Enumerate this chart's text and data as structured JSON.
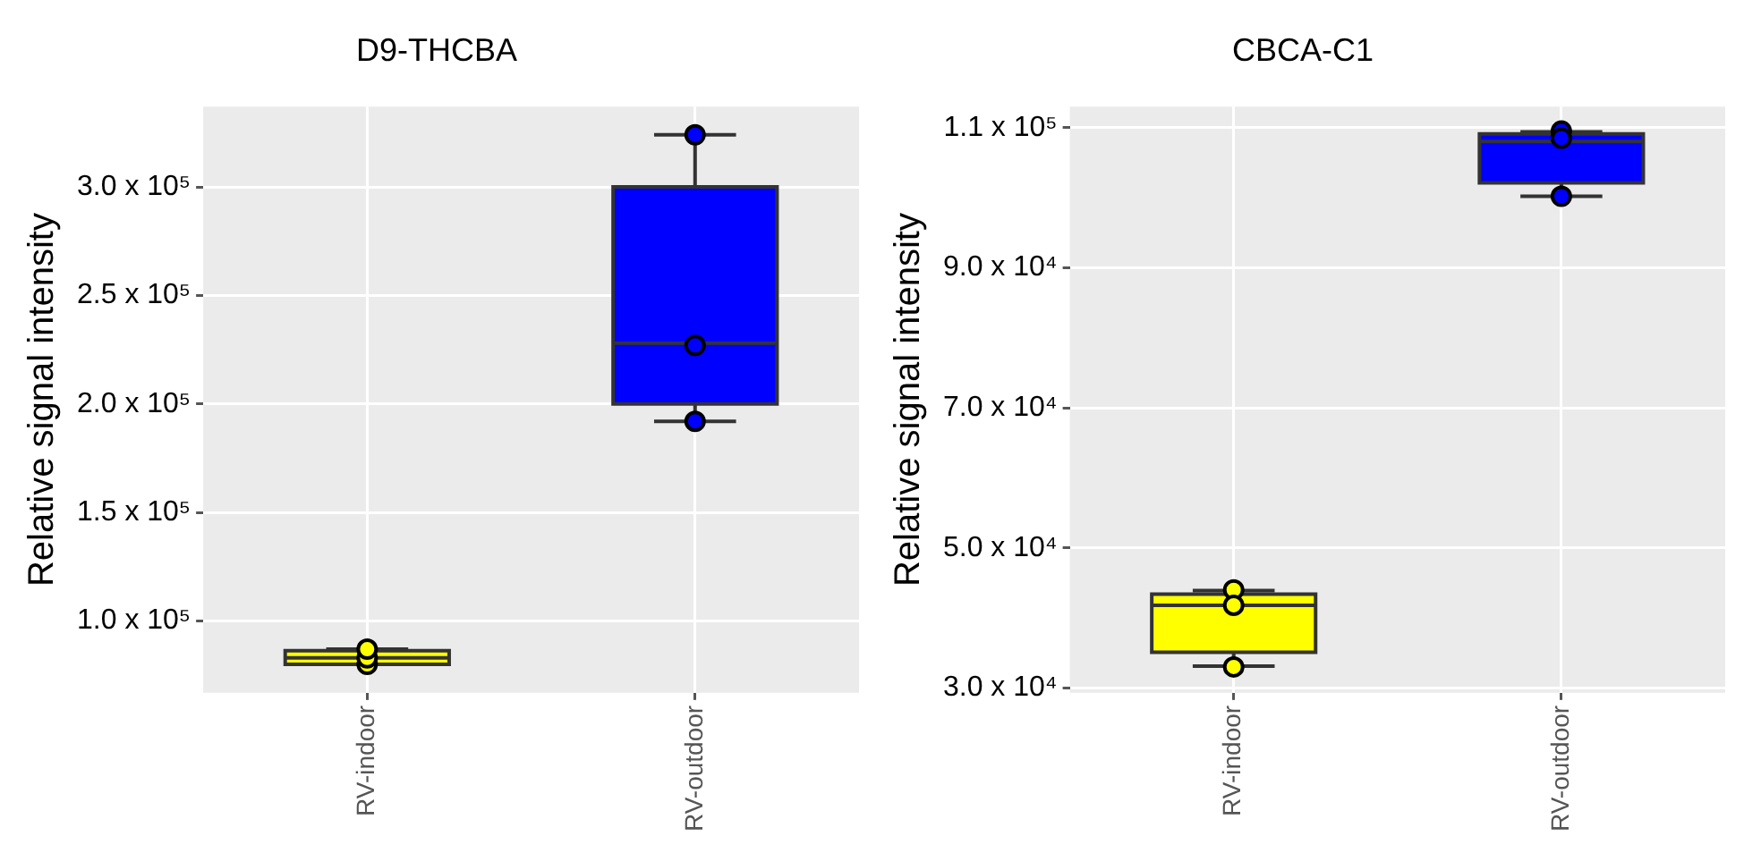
{
  "chart_data": [
    {
      "type": "box",
      "title": "D9-THCBA",
      "ylabel": "Relative signal intensity",
      "categories": [
        "RV-indoor",
        "RV-outdoor"
      ],
      "ylim": [
        66900,
        337000
      ],
      "yticks": [
        {
          "value": 100000,
          "label": "1.0 x 10⁵"
        },
        {
          "value": 150000,
          "label": "1.5 x 10⁵"
        },
        {
          "value": 200000,
          "label": "2.0 x 10⁵"
        },
        {
          "value": 250000,
          "label": "2.5 x 10⁵"
        },
        {
          "value": 300000,
          "label": "3.0 x 10⁵"
        }
      ],
      "grid": true,
      "colors": [
        "#ffff00",
        "#0000ff"
      ],
      "boxes": [
        {
          "low": 80000,
          "q1": 80000,
          "median": 83000,
          "q3": 86300,
          "high": 87000
        },
        {
          "low": 192000,
          "q1": 200000,
          "median": 228000,
          "q3": 300000,
          "high": 324000
        }
      ],
      "series": [
        {
          "type": "scatter",
          "x": [
            "RV-indoor",
            "RV-indoor",
            "RV-indoor",
            "RV-outdoor",
            "RV-outdoor",
            "RV-outdoor"
          ],
          "values": [
            80000,
            83000,
            87000,
            324000,
            227000,
            192000
          ],
          "colors": [
            "#ffff00",
            "#ffff00",
            "#ffff00",
            "#0000ff",
            "#0000ff",
            "#0000ff"
          ]
        }
      ]
    },
    {
      "type": "box",
      "title": "CBCA-C1",
      "ylabel": "Relative signal intensity",
      "categories": [
        "RV-indoor",
        "RV-outdoor"
      ],
      "ylim": [
        29300,
        113000
      ],
      "yticks": [
        {
          "value": 30000,
          "label": "3.0 x 10⁴"
        },
        {
          "value": 50000,
          "label": "5.0 x 10⁴"
        },
        {
          "value": 70000,
          "label": "7.0 x 10⁴"
        },
        {
          "value": 90000,
          "label": "9.0 x 10⁴"
        },
        {
          "value": 110000,
          "label": "1.1 x 10⁵"
        }
      ],
      "grid": true,
      "colors": [
        "#ffff00",
        "#0000ff"
      ],
      "boxes": [
        {
          "low": 33100,
          "q1": 35100,
          "median": 41800,
          "q3": 43400,
          "high": 43900
        },
        {
          "low": 100200,
          "q1": 102100,
          "median": 108000,
          "q3": 109100,
          "high": 109400
        }
      ],
      "series": [
        {
          "type": "scatter",
          "x": [
            "RV-indoor",
            "RV-indoor",
            "RV-indoor",
            "RV-outdoor",
            "RV-outdoor",
            "RV-outdoor"
          ],
          "values": [
            44000,
            41800,
            33000,
            109500,
            108500,
            100200
          ],
          "colors": [
            "#ffff00",
            "#ffff00",
            "#ffff00",
            "#0000ff",
            "#0000ff",
            "#0000ff"
          ]
        }
      ]
    }
  ]
}
